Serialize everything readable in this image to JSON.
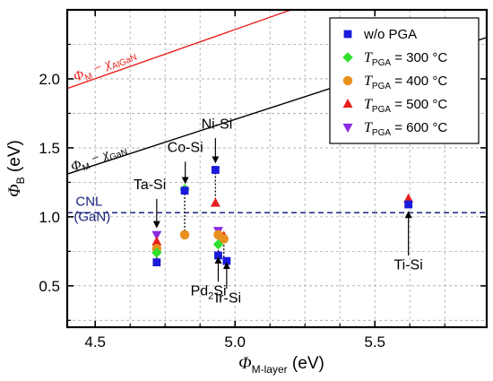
{
  "chart_data": {
    "type": "scatter",
    "xlim": [
      4.4,
      5.9
    ],
    "ylim": [
      0.2,
      2.5
    ],
    "x_ticks": [
      "4.5",
      "5.0",
      "5.5"
    ],
    "x_tick_values": [
      4.5,
      5.0,
      5.5
    ],
    "y_ticks": [
      "0.5",
      "1.0",
      "1.5",
      "2.0"
    ],
    "y_tick_values": [
      0.5,
      1.0,
      1.5,
      2.0
    ],
    "grid": true,
    "xlabel": {
      "symbol": "Φ",
      "sub": "M-layer",
      "unit": " (eV)"
    },
    "ylabel": {
      "symbol": "Φ",
      "sub": "B",
      "unit": " (eV)"
    },
    "legend": {
      "position": "top-right",
      "entries": [
        {
          "prefix": "",
          "main": "w/o PGA",
          "sub": "",
          "suffix": "",
          "marker": "square",
          "color": "#1a1adc"
        },
        {
          "prefix": "T",
          "main": "",
          "sub": "PGA",
          "suffix": " = 300 °C",
          "marker": "diamond",
          "color": "#2fe02f"
        },
        {
          "prefix": "T",
          "main": "",
          "sub": "PGA",
          "suffix": " = 400 °C",
          "marker": "circle",
          "color": "#e8901e"
        },
        {
          "prefix": "T",
          "main": "",
          "sub": "PGA",
          "suffix": " = 500 °C",
          "marker": "triangle-up",
          "color": "#e81e1e"
        },
        {
          "prefix": "T",
          "main": "",
          "sub": "PGA",
          "suffix": " = 600 °C",
          "marker": "triangle-down",
          "color": "#8a2be2"
        }
      ]
    },
    "series": [
      {
        "name": "w/o PGA",
        "marker": "square",
        "color": "#1a1adc",
        "x": [
          4.72,
          4.82,
          4.93,
          4.94,
          4.97,
          5.62
        ],
        "y": [
          0.67,
          1.19,
          1.34,
          0.72,
          0.68,
          1.09
        ]
      },
      {
        "name": "T_PGA = 300 °C",
        "marker": "diamond",
        "color": "#2fe02f",
        "x": [
          4.72,
          4.82,
          4.94
        ],
        "y": [
          0.74,
          1.2,
          0.8
        ]
      },
      {
        "name": "T_PGA = 400 °C",
        "marker": "circle",
        "color": "#e8901e",
        "x": [
          4.72,
          4.82,
          4.94,
          4.96
        ],
        "y": [
          0.77,
          0.87,
          0.87,
          0.84
        ]
      },
      {
        "name": "T_PGA = 500 °C",
        "marker": "triangle-up",
        "color": "#e81e1e",
        "x": [
          4.72,
          4.93,
          4.96,
          5.62
        ],
        "y": [
          0.82,
          1.1,
          0.86,
          1.13
        ]
      },
      {
        "name": "T_PGA = 600 °C",
        "marker": "triangle-down",
        "color": "#8a2be2",
        "x": [
          4.72,
          4.94
        ],
        "y": [
          0.87,
          0.9
        ]
      }
    ],
    "vertical_dotted": [
      {
        "x": 4.72,
        "y1": 0.67,
        "y2": 0.87
      },
      {
        "x": 4.82,
        "y1": 0.87,
        "y2": 1.2
      },
      {
        "x": 4.93,
        "y1": 1.1,
        "y2": 1.34
      },
      {
        "x": 4.94,
        "y1": 0.72,
        "y2": 0.9
      },
      {
        "x": 4.96,
        "y1": 0.68,
        "y2": 0.86
      },
      {
        "x": 5.62,
        "y1": 1.09,
        "y2": 1.13
      }
    ],
    "reference_lines": [
      {
        "main": "Φ",
        "label_sub": "M",
        "label_mid": " − χ",
        "label_sub2": "AlGaN",
        "color": "#e8201e",
        "x": [
          4.4,
          5.2
        ],
        "y": [
          1.93,
          2.5
        ],
        "label_x": 4.43,
        "label_y": 1.98,
        "angle": -23
      },
      {
        "main": "Φ",
        "label_sub": "M",
        "label_mid": " − χ",
        "label_sub2": "GaN",
        "color": "#000000",
        "x": [
          4.4,
          5.9
        ],
        "y": [
          1.31,
          2.3
        ],
        "label_x": 4.42,
        "label_y": 1.33,
        "angle": -21
      }
    ],
    "cnl": {
      "y": 1.03,
      "color": "#1a237e",
      "label_1": "CNL",
      "label_2": "(GaN)",
      "label_x": 4.43,
      "label_y": 1.08
    },
    "annotations": [
      {
        "label": "Ta-Si",
        "main": "",
        "sub": "",
        "suffix": "",
        "text_x": 4.695,
        "text_y": 1.2,
        "arrow": [
          [
            4.72,
            1.13
          ],
          [
            4.72,
            0.93
          ]
        ]
      },
      {
        "label": "Co-Si",
        "main": "",
        "sub": "",
        "suffix": "",
        "text_x": 4.822,
        "text_y": 1.47,
        "arrow": [
          [
            4.822,
            1.4
          ],
          [
            4.822,
            1.25
          ]
        ]
      },
      {
        "label": "Ni-Si",
        "main": "",
        "sub": "",
        "suffix": "",
        "text_x": 4.935,
        "text_y": 1.64,
        "arrow": [
          [
            4.93,
            1.57
          ],
          [
            4.93,
            1.4
          ]
        ]
      },
      {
        "label": "",
        "main": "Pd",
        "sub": "2",
        "suffix": "Si",
        "text_x": 4.905,
        "text_y": 0.43,
        "arrow": [
          [
            4.94,
            0.53
          ],
          [
            4.94,
            0.7
          ]
        ]
      },
      {
        "label": "Ir-Si",
        "main": "",
        "sub": "",
        "suffix": "",
        "text_x": 4.975,
        "text_y": 0.38,
        "arrow": [
          [
            4.97,
            0.48
          ],
          [
            4.97,
            0.66
          ]
        ]
      },
      {
        "label": "Ti-Si",
        "main": "",
        "sub": "",
        "suffix": "",
        "text_x": 5.62,
        "text_y": 0.62,
        "arrow": [
          [
            5.62,
            0.72
          ],
          [
            5.62,
            1.03
          ]
        ]
      }
    ]
  }
}
